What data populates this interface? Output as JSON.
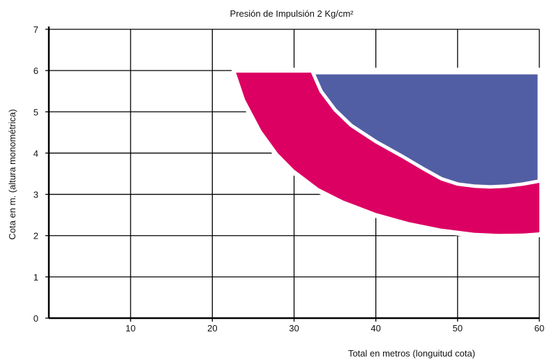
{
  "chart_data": {
    "type": "area",
    "title": "Presión de Impulsión 2 Kg/cm²",
    "xlabel": "Total en metros (longuitud cota)",
    "ylabel": "Cota en m. (altura monométrica)",
    "xlim": [
      0,
      60
    ],
    "ylim": [
      0,
      7
    ],
    "xticks": [
      10,
      20,
      30,
      40,
      50,
      60
    ],
    "yticks": [
      0,
      1,
      2,
      3,
      4,
      5,
      6,
      7
    ],
    "grid": true,
    "colors": {
      "outer_region": "#dc0063",
      "inner_region": "#525ea3",
      "grid": "#000000"
    },
    "series": [
      {
        "color": "#dc0063",
        "upper": [
          [
            22.9,
            5.95
          ],
          [
            60,
            5.95
          ]
        ],
        "lower": [
          [
            22.9,
            5.95
          ],
          [
            24,
            5.3
          ],
          [
            26,
            4.55
          ],
          [
            28,
            4.0
          ],
          [
            30,
            3.6
          ],
          [
            33,
            3.15
          ],
          [
            36,
            2.85
          ],
          [
            40,
            2.55
          ],
          [
            44,
            2.33
          ],
          [
            48,
            2.17
          ],
          [
            52,
            2.07
          ],
          [
            55,
            2.04
          ],
          [
            58,
            2.05
          ],
          [
            60,
            2.08
          ]
        ]
      },
      {
        "color": "#525ea3",
        "upper": [
          [
            32.3,
            5.95
          ],
          [
            60,
            5.95
          ]
        ],
        "lower": [
          [
            32.3,
            5.95
          ],
          [
            33.3,
            5.5
          ],
          [
            35,
            5.05
          ],
          [
            37,
            4.67
          ],
          [
            40,
            4.28
          ],
          [
            43,
            3.95
          ],
          [
            46,
            3.6
          ],
          [
            48,
            3.38
          ],
          [
            50,
            3.25
          ],
          [
            52,
            3.2
          ],
          [
            54,
            3.18
          ],
          [
            56,
            3.2
          ],
          [
            58,
            3.25
          ],
          [
            60,
            3.32
          ]
        ]
      }
    ]
  }
}
